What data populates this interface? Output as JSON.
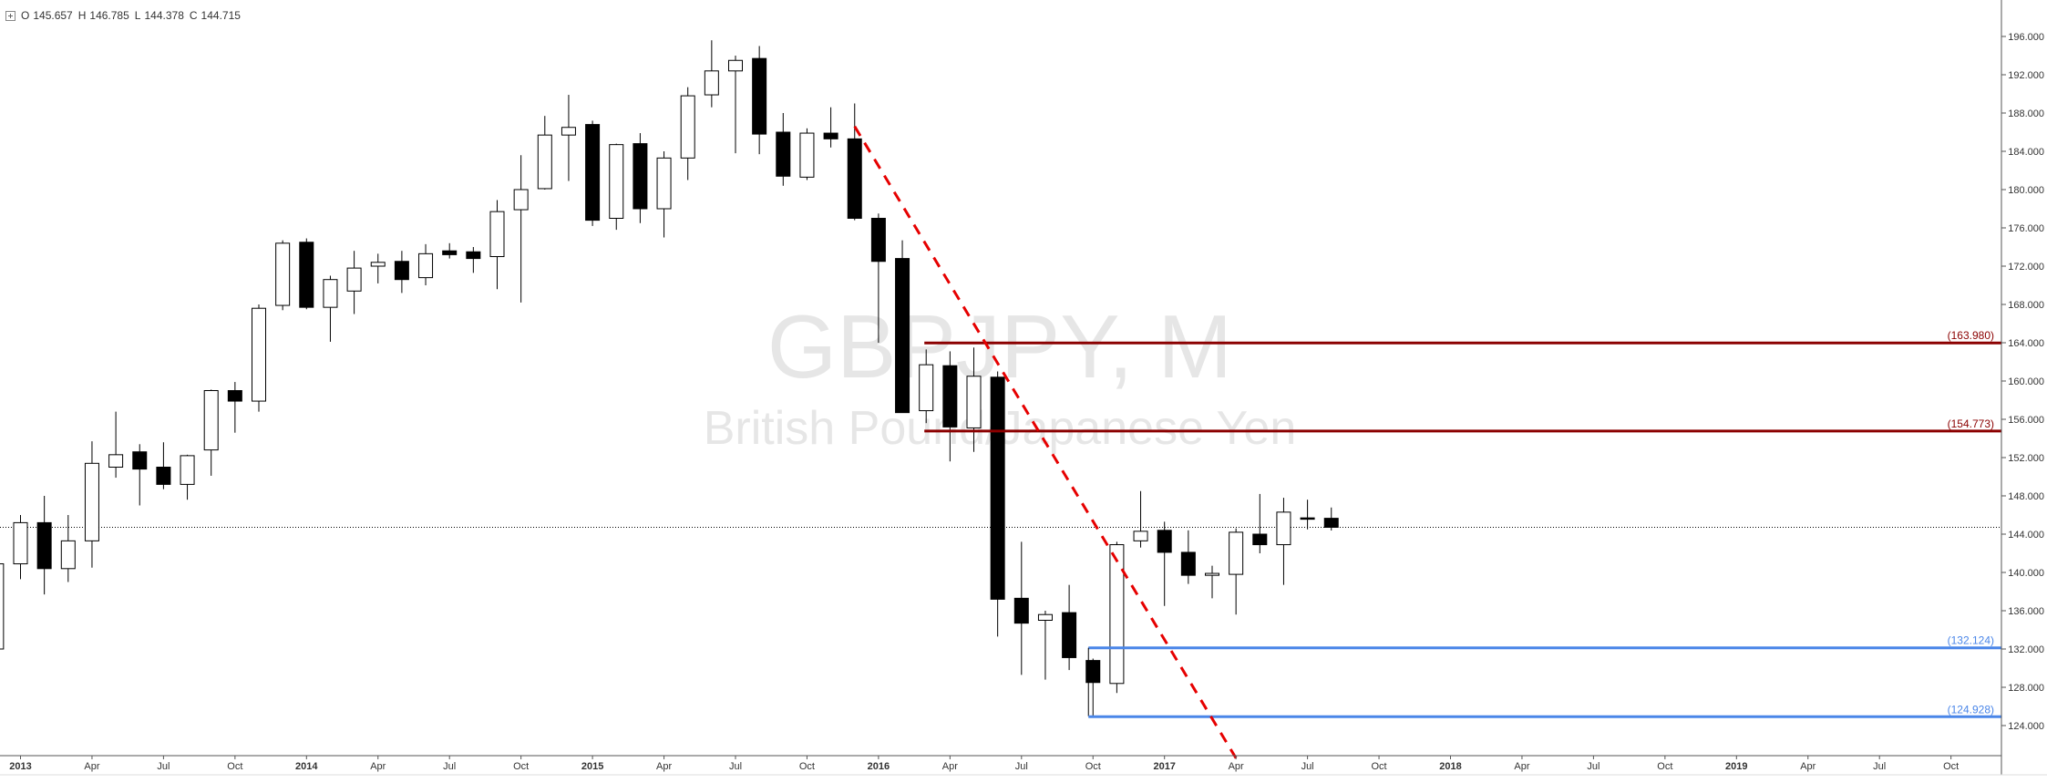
{
  "legend": {
    "open_label": "O",
    "open_value": "145.657",
    "high_label": "H",
    "high_value": "146.785",
    "low_label": "L",
    "low_value": "144.378",
    "close_label": "C",
    "close_value": "144.715"
  },
  "watermark": {
    "symbol": "GBPJPY, M",
    "description": "British Pound/Japanese Yen"
  },
  "colors": {
    "up_body": "#ffffff",
    "down_body": "#000000",
    "resistance": "#8b0000",
    "support": "#4a86e8",
    "trendline": "#e60000",
    "watermark": "#e6e6e6"
  },
  "chart_data": {
    "type": "candlestick",
    "timeframe": "monthly",
    "ylim": [
      120.5,
      197.0
    ],
    "y_ticks": [
      "196.000",
      "192.000",
      "188.000",
      "184.000",
      "180.000",
      "176.000",
      "172.000",
      "168.000",
      "164.000",
      "160.000",
      "156.000",
      "152.000",
      "148.000",
      "144.000",
      "140.000",
      "136.000",
      "132.000",
      "128.000",
      "124.000"
    ],
    "x_ticks": [
      {
        "label": "2013",
        "date": "2013-01",
        "bold": true
      },
      {
        "label": "Apr",
        "date": "2013-04"
      },
      {
        "label": "Jul",
        "date": "2013-07"
      },
      {
        "label": "Oct",
        "date": "2013-10"
      },
      {
        "label": "2014",
        "date": "2014-01",
        "bold": true
      },
      {
        "label": "Apr",
        "date": "2014-04"
      },
      {
        "label": "Jul",
        "date": "2014-07"
      },
      {
        "label": "Oct",
        "date": "2014-10"
      },
      {
        "label": "2015",
        "date": "2015-01",
        "bold": true
      },
      {
        "label": "Apr",
        "date": "2015-04"
      },
      {
        "label": "Jul",
        "date": "2015-07"
      },
      {
        "label": "Oct",
        "date": "2015-10"
      },
      {
        "label": "2016",
        "date": "2016-01",
        "bold": true
      },
      {
        "label": "Apr",
        "date": "2016-04"
      },
      {
        "label": "Jul",
        "date": "2016-07"
      },
      {
        "label": "Oct",
        "date": "2016-10"
      },
      {
        "label": "2017",
        "date": "2017-01",
        "bold": true
      },
      {
        "label": "Apr",
        "date": "2017-04"
      },
      {
        "label": "Jul",
        "date": "2017-07"
      },
      {
        "label": "Oct",
        "date": "2017-10"
      },
      {
        "label": "2018",
        "date": "2018-01",
        "bold": true
      },
      {
        "label": "Apr",
        "date": "2018-04"
      },
      {
        "label": "Jul",
        "date": "2018-07"
      },
      {
        "label": "Oct",
        "date": "2018-10"
      },
      {
        "label": "2019",
        "date": "2019-01",
        "bold": true
      },
      {
        "label": "Apr",
        "date": "2019-04"
      },
      {
        "label": "Jul",
        "date": "2019-07"
      },
      {
        "label": "Oct",
        "date": "2019-10"
      }
    ],
    "candles": [
      {
        "date": "2012-12",
        "open": 132.0,
        "high": 141.0,
        "low": 131.5,
        "close": 140.9
      },
      {
        "date": "2013-01",
        "open": 140.9,
        "high": 146.0,
        "low": 139.3,
        "close": 145.2
      },
      {
        "date": "2013-02",
        "open": 145.2,
        "high": 148.0,
        "low": 137.7,
        "close": 140.4
      },
      {
        "date": "2013-03",
        "open": 140.4,
        "high": 146.0,
        "low": 139.0,
        "close": 143.3
      },
      {
        "date": "2013-04",
        "open": 143.3,
        "high": 153.7,
        "low": 140.5,
        "close": 151.4
      },
      {
        "date": "2013-05",
        "open": 151.0,
        "high": 156.8,
        "low": 149.9,
        "close": 152.3
      },
      {
        "date": "2013-06",
        "open": 152.6,
        "high": 153.4,
        "low": 147.0,
        "close": 150.8
      },
      {
        "date": "2013-07",
        "open": 151.0,
        "high": 153.6,
        "low": 148.7,
        "close": 149.2
      },
      {
        "date": "2013-08",
        "open": 149.2,
        "high": 152.3,
        "low": 147.6,
        "close": 152.2
      },
      {
        "date": "2013-09",
        "open": 152.8,
        "high": 159.1,
        "low": 150.1,
        "close": 159.0
      },
      {
        "date": "2013-10",
        "open": 159.0,
        "high": 159.9,
        "low": 154.6,
        "close": 157.9
      },
      {
        "date": "2013-11",
        "open": 157.9,
        "high": 168.0,
        "low": 156.8,
        "close": 167.6
      },
      {
        "date": "2013-12",
        "open": 167.9,
        "high": 174.7,
        "low": 167.4,
        "close": 174.4
      },
      {
        "date": "2014-01",
        "open": 174.5,
        "high": 174.9,
        "low": 167.5,
        "close": 167.7
      },
      {
        "date": "2014-02",
        "open": 167.7,
        "high": 171.0,
        "low": 164.1,
        "close": 170.6
      },
      {
        "date": "2014-03",
        "open": 169.4,
        "high": 173.6,
        "low": 167.0,
        "close": 171.8
      },
      {
        "date": "2014-04",
        "open": 172.0,
        "high": 173.3,
        "low": 170.2,
        "close": 172.4
      },
      {
        "date": "2014-05",
        "open": 172.5,
        "high": 173.6,
        "low": 169.2,
        "close": 170.6
      },
      {
        "date": "2014-06",
        "open": 170.8,
        "high": 174.3,
        "low": 170.0,
        "close": 173.3
      },
      {
        "date": "2014-07",
        "open": 173.6,
        "high": 174.4,
        "low": 172.8,
        "close": 173.2
      },
      {
        "date": "2014-08",
        "open": 173.5,
        "high": 174.0,
        "low": 171.3,
        "close": 172.8
      },
      {
        "date": "2014-09",
        "open": 173.0,
        "high": 178.9,
        "low": 169.6,
        "close": 177.7
      },
      {
        "date": "2014-10",
        "open": 177.9,
        "high": 183.6,
        "low": 168.2,
        "close": 180.0
      },
      {
        "date": "2014-11",
        "open": 180.1,
        "high": 187.7,
        "low": 180.0,
        "close": 185.7
      },
      {
        "date": "2014-12",
        "open": 185.7,
        "high": 189.9,
        "low": 180.9,
        "close": 186.5
      },
      {
        "date": "2015-01",
        "open": 186.8,
        "high": 187.2,
        "low": 176.2,
        "close": 176.8
      },
      {
        "date": "2015-02",
        "open": 177.0,
        "high": 184.8,
        "low": 175.8,
        "close": 184.7
      },
      {
        "date": "2015-03",
        "open": 184.8,
        "high": 185.9,
        "low": 176.5,
        "close": 178.0
      },
      {
        "date": "2015-04",
        "open": 178.0,
        "high": 184.0,
        "low": 175.0,
        "close": 183.3
      },
      {
        "date": "2015-05",
        "open": 183.3,
        "high": 190.7,
        "low": 181.0,
        "close": 189.8
      },
      {
        "date": "2015-06",
        "open": 189.9,
        "high": 195.6,
        "low": 188.6,
        "close": 192.4
      },
      {
        "date": "2015-07",
        "open": 192.4,
        "high": 194.0,
        "low": 183.8,
        "close": 193.5
      },
      {
        "date": "2015-08",
        "open": 193.7,
        "high": 195.0,
        "low": 183.7,
        "close": 185.8
      },
      {
        "date": "2015-09",
        "open": 186.0,
        "high": 188.0,
        "low": 180.4,
        "close": 181.4
      },
      {
        "date": "2015-10",
        "open": 181.3,
        "high": 186.4,
        "low": 181.0,
        "close": 185.9
      },
      {
        "date": "2015-11",
        "open": 185.9,
        "high": 188.6,
        "low": 184.4,
        "close": 185.3
      },
      {
        "date": "2015-12",
        "open": 185.3,
        "high": 189.0,
        "low": 176.8,
        "close": 177.0
      },
      {
        "date": "2016-01",
        "open": 177.0,
        "high": 177.5,
        "low": 164.0,
        "close": 172.5
      },
      {
        "date": "2016-02",
        "open": 172.8,
        "high": 174.7,
        "low": 156.7,
        "close": 156.7
      },
      {
        "date": "2016-03",
        "open": 156.9,
        "high": 163.3,
        "low": 155.6,
        "close": 161.7
      },
      {
        "date": "2016-04",
        "open": 161.6,
        "high": 163.1,
        "low": 151.6,
        "close": 155.2
      },
      {
        "date": "2016-05",
        "open": 155.1,
        "high": 163.5,
        "low": 152.6,
        "close": 160.5
      },
      {
        "date": "2016-06",
        "open": 160.4,
        "high": 161.0,
        "low": 133.3,
        "close": 137.2
      },
      {
        "date": "2016-07",
        "open": 137.3,
        "high": 143.2,
        "low": 129.3,
        "close": 134.7
      },
      {
        "date": "2016-08",
        "open": 135.0,
        "high": 136.0,
        "low": 128.8,
        "close": 135.6
      },
      {
        "date": "2016-09",
        "open": 135.8,
        "high": 138.7,
        "low": 129.8,
        "close": 131.1
      },
      {
        "date": "2016-10",
        "open": 130.8,
        "high": 131.0,
        "low": 124.9,
        "close": 128.5
      },
      {
        "date": "2016-11",
        "open": 128.4,
        "high": 143.2,
        "low": 127.4,
        "close": 142.9
      },
      {
        "date": "2016-12",
        "open": 143.3,
        "high": 148.5,
        "low": 142.6,
        "close": 144.3
      },
      {
        "date": "2017-01",
        "open": 144.4,
        "high": 145.3,
        "low": 136.5,
        "close": 142.1
      },
      {
        "date": "2017-02",
        "open": 142.1,
        "high": 144.4,
        "low": 138.8,
        "close": 139.7
      },
      {
        "date": "2017-03",
        "open": 139.7,
        "high": 140.7,
        "low": 137.3,
        "close": 139.9
      },
      {
        "date": "2017-04",
        "open": 139.8,
        "high": 144.6,
        "low": 135.6,
        "close": 144.2
      },
      {
        "date": "2017-05",
        "open": 144.0,
        "high": 148.2,
        "low": 142.0,
        "close": 142.9
      },
      {
        "date": "2017-06",
        "open": 142.9,
        "high": 147.8,
        "low": 138.7,
        "close": 146.3
      },
      {
        "date": "2017-07",
        "open": 145.7,
        "high": 147.6,
        "low": 144.5,
        "close": 145.6
      },
      {
        "date": "2017-08",
        "open": 145.657,
        "high": 146.785,
        "low": 144.378,
        "close": 144.715
      }
    ],
    "current_price": 144.715,
    "levels": [
      {
        "label": "(163.980)",
        "value": 163.98,
        "role": "resistance",
        "start": "2016-03"
      },
      {
        "label": "(154.773)",
        "value": 154.773,
        "role": "resistance",
        "start": "2016-03"
      },
      {
        "label": "(132.124)",
        "value": 132.124,
        "role": "support",
        "start": "2016-10"
      },
      {
        "label": "(124.928)",
        "value": 124.928,
        "role": "support",
        "start": "2016-10"
      }
    ],
    "trendline": {
      "start": {
        "date": "2015-12",
        "value": 186.6
      },
      "end": {
        "date": "2017-04",
        "value": 120.6
      },
      "style": "dashed"
    }
  }
}
